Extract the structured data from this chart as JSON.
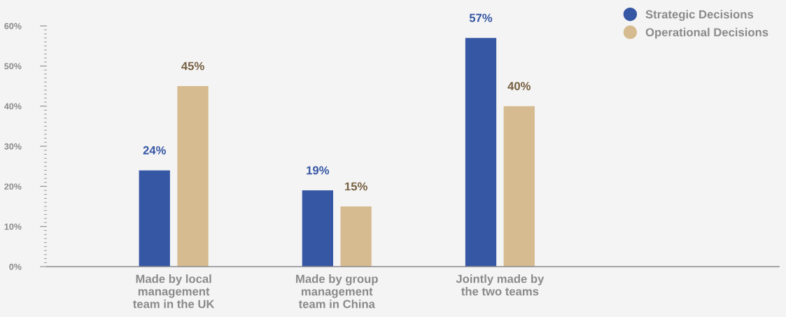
{
  "chart_data": {
    "type": "bar",
    "categories": [
      "Made by local\nmanagement\nteam in the UK",
      "Made by group\nmanagement\nteam in China",
      "Jointly made by\nthe two teams"
    ],
    "series": [
      {
        "name": "Strategic Decisions",
        "color": "#3657a4",
        "values": [
          24,
          19,
          57
        ]
      },
      {
        "name": "Operational Decisions",
        "color": "#d5bb8f",
        "values": [
          45,
          15,
          40
        ]
      }
    ],
    "ylim": [
      0,
      60
    ],
    "yticks": [
      {
        "value": 0,
        "label": "0%"
      },
      {
        "value": 10,
        "label": "10%"
      },
      {
        "value": 20,
        "label": "20%"
      },
      {
        "value": 30,
        "label": "30%"
      },
      {
        "value": 40,
        "label": "40%"
      },
      {
        "value": 50,
        "label": "50%"
      },
      {
        "value": 60,
        "label": "60%"
      }
    ],
    "value_labels": [
      [
        "24%",
        "19%",
        "57%"
      ],
      [
        "45%",
        "15%",
        "40%"
      ]
    ],
    "legend": "top right",
    "grid": false
  }
}
